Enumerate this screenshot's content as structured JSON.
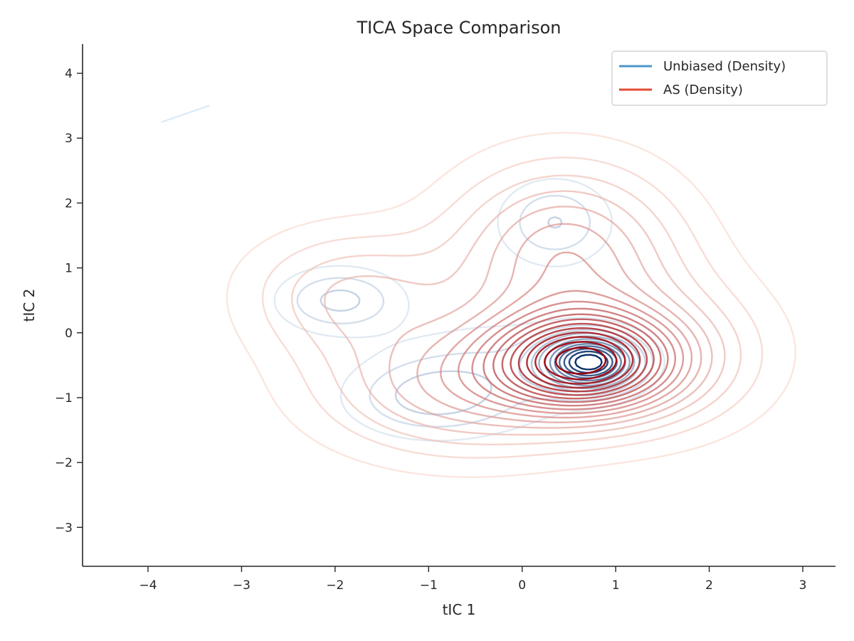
{
  "chart_data": {
    "type": "contour",
    "title": "TICA Space Comparison",
    "xlabel": "tIC 1",
    "ylabel": "tIC 2",
    "xlim": [
      -4.7,
      3.35
    ],
    "ylim": [
      -3.6,
      4.45
    ],
    "xticks": [
      -4,
      -3,
      -2,
      -1,
      0,
      1,
      2,
      3
    ],
    "yticks": [
      -3,
      -2,
      -1,
      0,
      1,
      2,
      3,
      4
    ],
    "xtick_labels": [
      "−4",
      "−3",
      "−2",
      "−1",
      "0",
      "1",
      "2",
      "3"
    ],
    "ytick_labels": [
      "−3",
      "−2",
      "−1",
      "0",
      "1",
      "2",
      "3",
      "4"
    ],
    "legend_position": "top-right",
    "grid": false,
    "series": [
      {
        "name": "Unbiased (Density)",
        "legend_color": "#4a98c9",
        "levels": 12,
        "color_light": "#deebf7",
        "color_dark": "#08306b",
        "components": [
          {
            "cx": 0.72,
            "cy": -0.45,
            "sx": 0.32,
            "sy": 0.26,
            "w": 1.0
          },
          {
            "cx": -1.95,
            "cy": 0.5,
            "sx": 0.42,
            "sy": 0.32,
            "w": 0.22
          },
          {
            "cx": 0.35,
            "cy": 1.7,
            "sx": 0.38,
            "sy": 0.42,
            "w": 0.2
          },
          {
            "cx": -1.0,
            "cy": -1.0,
            "sx": 0.55,
            "sy": 0.38,
            "w": 0.2
          },
          {
            "cx": -0.2,
            "cy": -0.6,
            "sx": 0.8,
            "sy": 0.55,
            "w": 0.12
          }
        ]
      },
      {
        "name": "AS (Density)",
        "legend_color": "#e34a33",
        "levels": 18,
        "color_light": "#fee0d2",
        "color_dark": "#99000d",
        "components": [
          {
            "cx": 0.65,
            "cy": -0.45,
            "sx": 0.65,
            "sy": 0.5,
            "w": 1.0
          },
          {
            "cx": 0.45,
            "cy": 1.2,
            "sx": 0.8,
            "sy": 0.9,
            "w": 0.4
          },
          {
            "cx": -1.8,
            "cy": 0.6,
            "sx": 0.75,
            "sy": 0.65,
            "w": 0.22
          },
          {
            "cx": -0.6,
            "cy": -0.8,
            "sx": 1.0,
            "sy": 0.7,
            "w": 0.35
          },
          {
            "cx": 1.5,
            "cy": -0.3,
            "sx": 0.8,
            "sy": 0.8,
            "w": 0.2
          }
        ]
      }
    ],
    "extra_fragment": {
      "series": "Unbiased (Density)",
      "x": [
        -3.85,
        -3.35
      ],
      "y": [
        3.25,
        3.5
      ]
    }
  }
}
